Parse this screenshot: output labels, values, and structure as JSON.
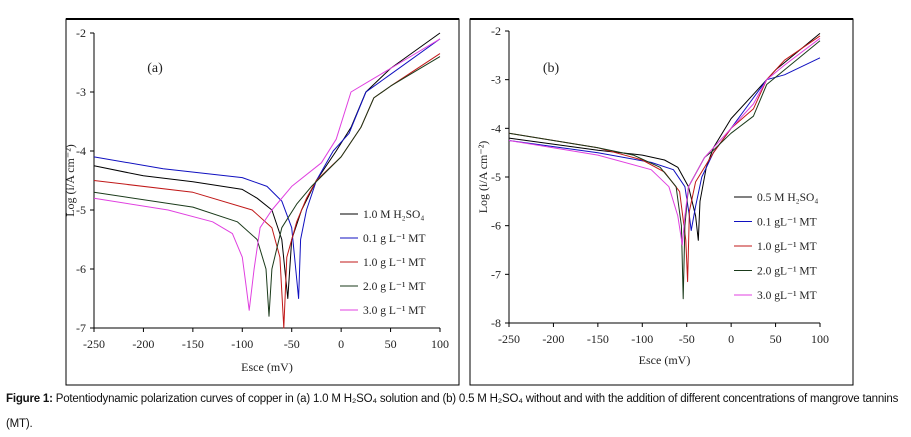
{
  "chart_data": [
    {
      "type": "line",
      "panel_label": "(a)",
      "xlabel": "Esce (mV)",
      "ylabel": "Log (i/A cm⁻²)",
      "xlim": [
        -250,
        100
      ],
      "ylim": [
        -7,
        -2
      ],
      "xticks": [
        -250,
        -200,
        -150,
        -100,
        -50,
        0,
        50,
        100
      ],
      "yticks": [
        -7,
        -6,
        -5,
        -4,
        -3,
        -2
      ],
      "grid": false,
      "legend_placement": "lower-right",
      "series": [
        {
          "name": "1.0 M H₂SO₄",
          "color": "#000000",
          "points": [
            [
              -250,
              -4.25
            ],
            [
              -200,
              -4.42
            ],
            [
              -150,
              -4.52
            ],
            [
              -100,
              -4.65
            ],
            [
              -85,
              -4.8
            ],
            [
              -70,
              -5.0
            ],
            [
              -60,
              -5.5
            ],
            [
              -54,
              -6.5
            ],
            [
              -50,
              -5.5
            ],
            [
              -40,
              -5.0
            ],
            [
              -25,
              -4.5
            ],
            [
              -5,
              -4.0
            ],
            [
              10,
              -3.6
            ],
            [
              25,
              -3.0
            ],
            [
              50,
              -2.6
            ],
            [
              100,
              -2.0
            ]
          ]
        },
        {
          "name": "0.1 g L⁻¹ MT",
          "color": "#1010c0",
          "points": [
            [
              -250,
              -4.1
            ],
            [
              -180,
              -4.3
            ],
            [
              -100,
              -4.45
            ],
            [
              -75,
              -4.6
            ],
            [
              -60,
              -4.85
            ],
            [
              -50,
              -5.3
            ],
            [
              -43,
              -6.5
            ],
            [
              -41,
              -5.5
            ],
            [
              -35,
              -5.0
            ],
            [
              -25,
              -4.5
            ],
            [
              -8,
              -4.0
            ],
            [
              8,
              -3.7
            ],
            [
              25,
              -3.0
            ],
            [
              50,
              -2.7
            ],
            [
              100,
              -2.1
            ]
          ]
        },
        {
          "name": "1.0 g L⁻¹ MT",
          "color": "#c01818",
          "points": [
            [
              -250,
              -4.5
            ],
            [
              -150,
              -4.7
            ],
            [
              -90,
              -5.0
            ],
            [
              -70,
              -5.3
            ],
            [
              -62,
              -5.8
            ],
            [
              -58,
              -7.0
            ],
            [
              -55,
              -5.8
            ],
            [
              -45,
              -5.2
            ],
            [
              -35,
              -4.8
            ],
            [
              -25,
              -4.5
            ],
            [
              0,
              -4.1
            ],
            [
              20,
              -3.6
            ],
            [
              33,
              -3.1
            ],
            [
              50,
              -2.9
            ],
            [
              100,
              -2.35
            ]
          ]
        },
        {
          "name": "2.0 g L⁻¹ MT",
          "color": "#1a3a1a",
          "points": [
            [
              -250,
              -4.7
            ],
            [
              -150,
              -4.95
            ],
            [
              -105,
              -5.2
            ],
            [
              -85,
              -5.5
            ],
            [
              -76,
              -6.0
            ],
            [
              -73,
              -6.8
            ],
            [
              -70,
              -6.0
            ],
            [
              -60,
              -5.3
            ],
            [
              -45,
              -4.9
            ],
            [
              -30,
              -4.6
            ],
            [
              0,
              -4.1
            ],
            [
              20,
              -3.6
            ],
            [
              33,
              -3.1
            ],
            [
              50,
              -2.9
            ],
            [
              100,
              -2.4
            ]
          ]
        },
        {
          "name": "3.0 g L⁻¹ MT",
          "color": "#e040e0",
          "points": [
            [
              -250,
              -4.8
            ],
            [
              -175,
              -5.0
            ],
            [
              -130,
              -5.2
            ],
            [
              -110,
              -5.4
            ],
            [
              -100,
              -5.8
            ],
            [
              -96,
              -6.3
            ],
            [
              -93,
              -6.7
            ],
            [
              -88,
              -6.0
            ],
            [
              -82,
              -5.3
            ],
            [
              -70,
              -5.0
            ],
            [
              -50,
              -4.6
            ],
            [
              -20,
              -4.2
            ],
            [
              -5,
              -3.8
            ],
            [
              10,
              -3.0
            ],
            [
              30,
              -2.8
            ],
            [
              60,
              -2.5
            ],
            [
              100,
              -2.1
            ]
          ]
        }
      ]
    },
    {
      "type": "line",
      "panel_label": "(b)",
      "xlabel": "Esce (mV)",
      "ylabel": "Log (i/A cm⁻²)",
      "xlim": [
        -250,
        100
      ],
      "ylim": [
        -8,
        -2
      ],
      "xticks": [
        -250,
        -200,
        -150,
        -100,
        -50,
        0,
        50,
        100
      ],
      "yticks": [
        -8,
        -7,
        -6,
        -5,
        -4,
        -3,
        -2
      ],
      "grid": false,
      "legend_placement": "lower-right",
      "series": [
        {
          "name": "0.5 M H₂SO₄",
          "color": "#000000",
          "points": [
            [
              -250,
              -4.2
            ],
            [
              -150,
              -4.45
            ],
            [
              -100,
              -4.55
            ],
            [
              -75,
              -4.65
            ],
            [
              -60,
              -4.8
            ],
            [
              -48,
              -5.2
            ],
            [
              -40,
              -5.8
            ],
            [
              -37,
              -6.3
            ],
            [
              -35,
              -5.5
            ],
            [
              -28,
              -4.8
            ],
            [
              -20,
              -4.4
            ],
            [
              0,
              -3.8
            ],
            [
              25,
              -3.3
            ],
            [
              50,
              -2.8
            ],
            [
              100,
              -2.05
            ]
          ]
        },
        {
          "name": "0.1 gL⁻¹ MT",
          "color": "#1010c0",
          "points": [
            [
              -250,
              -4.25
            ],
            [
              -150,
              -4.5
            ],
            [
              -90,
              -4.7
            ],
            [
              -65,
              -4.85
            ],
            [
              -52,
              -5.2
            ],
            [
              -47,
              -5.8
            ],
            [
              -45,
              -6.1
            ],
            [
              -40,
              -5.6
            ],
            [
              -33,
              -5.0
            ],
            [
              -20,
              -4.5
            ],
            [
              0,
              -4.0
            ],
            [
              20,
              -3.5
            ],
            [
              40,
              -3.0
            ],
            [
              60,
              -2.9
            ],
            [
              100,
              -2.55
            ]
          ]
        },
        {
          "name": "1.0 gL⁻¹ MT",
          "color": "#c01818",
          "points": [
            [
              -250,
              -4.1
            ],
            [
              -150,
              -4.4
            ],
            [
              -100,
              -4.65
            ],
            [
              -75,
              -4.9
            ],
            [
              -58,
              -5.3
            ],
            [
              -51,
              -6.3
            ],
            [
              -49,
              -7.15
            ],
            [
              -47,
              -5.7
            ],
            [
              -40,
              -5.1
            ],
            [
              -20,
              -4.5
            ],
            [
              0,
              -4.0
            ],
            [
              25,
              -3.6
            ],
            [
              40,
              -3.0
            ],
            [
              60,
              -2.6
            ],
            [
              100,
              -2.1
            ]
          ]
        },
        {
          "name": "2.0 gL⁻¹ MT",
          "color": "#1a3a1a",
          "points": [
            [
              -250,
              -4.1
            ],
            [
              -150,
              -4.4
            ],
            [
              -110,
              -4.55
            ],
            [
              -80,
              -4.8
            ],
            [
              -62,
              -5.2
            ],
            [
              -56,
              -6.0
            ],
            [
              -54,
              -7.5
            ],
            [
              -52,
              -6.0
            ],
            [
              -48,
              -5.2
            ],
            [
              -30,
              -4.6
            ],
            [
              -20,
              -4.45
            ],
            [
              0,
              -4.1
            ],
            [
              25,
              -3.75
            ],
            [
              40,
              -3.1
            ],
            [
              60,
              -2.8
            ],
            [
              100,
              -2.2
            ]
          ]
        },
        {
          "name": "3.0 gL⁻¹ MT",
          "color": "#e040e0",
          "points": [
            [
              -250,
              -4.25
            ],
            [
              -150,
              -4.55
            ],
            [
              -90,
              -4.85
            ],
            [
              -70,
              -5.2
            ],
            [
              -60,
              -5.8
            ],
            [
              -55,
              -6.4
            ],
            [
              -52,
              -5.8
            ],
            [
              -48,
              -5.2
            ],
            [
              -30,
              -4.6
            ],
            [
              0,
              -4.0
            ],
            [
              25,
              -3.5
            ],
            [
              40,
              -3.0
            ],
            [
              60,
              -2.7
            ],
            [
              100,
              -2.15
            ]
          ]
        }
      ]
    }
  ],
  "caption": {
    "label": "Figure 1:",
    "text": "Potentiodynamic polarization curves of copper in (a) 1.0 M H₂SO₄ solution and (b) 0.5 M H₂SO₄ without and with the addition of different concentrations of mangrove tannins (MT)."
  }
}
